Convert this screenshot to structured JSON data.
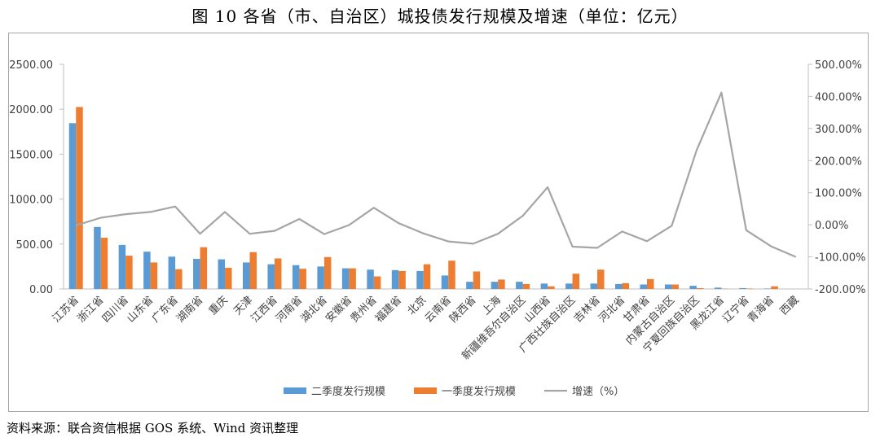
{
  "title": "图 10   各省（市、自治区）城投债发行规模及增速（单位：亿元）",
  "source": "资料来源：联合资信根据 GOS 系统、Wind 资讯整理",
  "colors": {
    "q2": "#5b9bd5",
    "q1": "#ed7d31",
    "growth": "#a5a5a5"
  },
  "chart_data": {
    "type": "bar",
    "categories": [
      "江苏省",
      "浙江省",
      "四川省",
      "山东省",
      "广东省",
      "湖南省",
      "重庆",
      "天津",
      "江西省",
      "河南省",
      "湖北省",
      "安徽省",
      "贵州省",
      "福建省",
      "北京",
      "云南省",
      "陕西省",
      "上海",
      "新疆维吾尔自治区",
      "山西省",
      "广西壮族自治区",
      "吉林省",
      "河北省",
      "甘肃省",
      "内蒙古自治区",
      "宁夏回族自治区",
      "黑龙江省",
      "辽宁省",
      "青海省",
      "西藏"
    ],
    "series": [
      {
        "name": "二季度发行规模",
        "kind": "bar",
        "axis": "left",
        "values": [
          1845,
          690,
          490,
          415,
          360,
          335,
          330,
          295,
          275,
          265,
          250,
          230,
          215,
          210,
          200,
          150,
          80,
          80,
          80,
          60,
          60,
          60,
          55,
          50,
          50,
          35,
          15,
          10,
          5,
          0
        ]
      },
      {
        "name": "一季度发行规模",
        "kind": "bar",
        "axis": "left",
        "values": [
          2025,
          570,
          370,
          295,
          220,
          465,
          235,
          410,
          340,
          225,
          355,
          230,
          140,
          200,
          275,
          315,
          195,
          105,
          55,
          30,
          170,
          215,
          65,
          110,
          50,
          10,
          3,
          5,
          30,
          0
        ]
      },
      {
        "name": "增速（%）",
        "kind": "line",
        "axis": "right",
        "values": [
          -2,
          22,
          33,
          40,
          57,
          -28,
          40,
          -28,
          -19,
          18,
          -29,
          -1,
          53,
          5,
          -27,
          -52,
          -59,
          -28,
          28,
          117,
          -68,
          -72,
          -21,
          -51,
          -3,
          232,
          412,
          -17,
          -67,
          -100
        ]
      }
    ],
    "y_left": {
      "min": 0,
      "max": 2500,
      "ticks": [
        "0.00",
        "500.00",
        "1000.00",
        "1500.00",
        "2000.00",
        "2500.00"
      ]
    },
    "y_right": {
      "min": -200,
      "max": 500,
      "ticks": [
        "-200.00%",
        "-100.00%",
        "0.00%",
        "100.00%",
        "200.00%",
        "300.00%",
        "400.00%",
        "500.00%"
      ]
    },
    "grid": false,
    "legend_position": "bottom"
  }
}
